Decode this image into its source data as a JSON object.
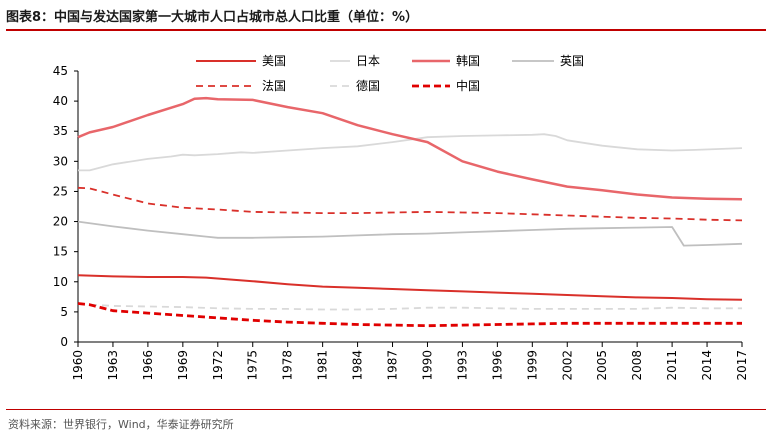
{
  "title": "图表8：中国与发达国家第一大城市人口占城市总人口比重（单位：%）",
  "source": "资料来源：世界银行，Wind，华泰证券研究所",
  "chart_data": {
    "type": "line",
    "ylim": [
      0,
      45
    ],
    "yticks": [
      0,
      5,
      10,
      15,
      20,
      25,
      30,
      35,
      40,
      45
    ],
    "xlim": [
      1960,
      2017
    ],
    "xticks": [
      1960,
      1963,
      1966,
      1969,
      1972,
      1975,
      1978,
      1981,
      1984,
      1987,
      1990,
      1993,
      1996,
      1999,
      2002,
      2005,
      2008,
      2011,
      2014,
      2017
    ],
    "legend_position": "top",
    "series": [
      {
        "name": "美国",
        "color": "#d9302a",
        "dash": "solid",
        "width": 2,
        "points": [
          [
            1960,
            11.1
          ],
          [
            1963,
            10.9
          ],
          [
            1966,
            10.8
          ],
          [
            1969,
            10.8
          ],
          [
            1971,
            10.7
          ],
          [
            1975,
            10.1
          ],
          [
            1978,
            9.6
          ],
          [
            1981,
            9.2
          ],
          [
            1984,
            9.0
          ],
          [
            1987,
            8.8
          ],
          [
            1990,
            8.6
          ],
          [
            1993,
            8.4
          ],
          [
            1996,
            8.2
          ],
          [
            1999,
            8.0
          ],
          [
            2002,
            7.8
          ],
          [
            2005,
            7.6
          ],
          [
            2008,
            7.4
          ],
          [
            2011,
            7.3
          ],
          [
            2014,
            7.1
          ],
          [
            2017,
            7.0
          ]
        ]
      },
      {
        "name": "日本",
        "color": "#d9d9d9",
        "dash": "solid",
        "width": 1.8,
        "points": [
          [
            1960,
            28.5
          ],
          [
            1961,
            28.5
          ],
          [
            1963,
            29.5
          ],
          [
            1966,
            30.4
          ],
          [
            1968,
            30.8
          ],
          [
            1969,
            31.1
          ],
          [
            1970,
            31.0
          ],
          [
            1972,
            31.2
          ],
          [
            1974,
            31.5
          ],
          [
            1975,
            31.4
          ],
          [
            1978,
            31.8
          ],
          [
            1981,
            32.2
          ],
          [
            1984,
            32.5
          ],
          [
            1987,
            33.2
          ],
          [
            1990,
            34.0
          ],
          [
            1993,
            34.2
          ],
          [
            1996,
            34.3
          ],
          [
            1999,
            34.4
          ],
          [
            2000,
            34.5
          ],
          [
            2001,
            34.2
          ],
          [
            2002,
            33.5
          ],
          [
            2005,
            32.6
          ],
          [
            2008,
            32.0
          ],
          [
            2011,
            31.8
          ],
          [
            2013,
            31.9
          ],
          [
            2017,
            32.2
          ]
        ]
      },
      {
        "name": "韩国",
        "color": "#e8666a",
        "dash": "solid",
        "width": 2.5,
        "points": [
          [
            1960,
            34.0
          ],
          [
            1961,
            34.8
          ],
          [
            1963,
            35.7
          ],
          [
            1966,
            37.7
          ],
          [
            1969,
            39.5
          ],
          [
            1970,
            40.4
          ],
          [
            1971,
            40.5
          ],
          [
            1972,
            40.3
          ],
          [
            1975,
            40.2
          ],
          [
            1978,
            39.0
          ],
          [
            1981,
            38.0
          ],
          [
            1984,
            36.0
          ],
          [
            1987,
            34.5
          ],
          [
            1990,
            33.2
          ],
          [
            1993,
            30.0
          ],
          [
            1996,
            28.3
          ],
          [
            1999,
            27.0
          ],
          [
            2002,
            25.8
          ],
          [
            2005,
            25.2
          ],
          [
            2008,
            24.5
          ],
          [
            2011,
            24.0
          ],
          [
            2014,
            23.8
          ],
          [
            2017,
            23.7
          ]
        ]
      },
      {
        "name": "英国",
        "color": "#bfbfbf",
        "dash": "solid",
        "width": 1.8,
        "points": [
          [
            1960,
            20.0
          ],
          [
            1963,
            19.2
          ],
          [
            1966,
            18.5
          ],
          [
            1969,
            17.9
          ],
          [
            1971,
            17.5
          ],
          [
            1972,
            17.3
          ],
          [
            1975,
            17.3
          ],
          [
            1978,
            17.4
          ],
          [
            1981,
            17.5
          ],
          [
            1984,
            17.7
          ],
          [
            1987,
            17.9
          ],
          [
            1990,
            18.0
          ],
          [
            1993,
            18.2
          ],
          [
            1996,
            18.4
          ],
          [
            1999,
            18.6
          ],
          [
            2002,
            18.8
          ],
          [
            2005,
            18.9
          ],
          [
            2008,
            19.0
          ],
          [
            2011,
            19.1
          ],
          [
            2012,
            16.0
          ],
          [
            2014,
            16.1
          ],
          [
            2017,
            16.3
          ]
        ]
      },
      {
        "name": "法国",
        "color": "#d9302a",
        "dash": "7,5",
        "width": 1.8,
        "points": [
          [
            1960,
            25.6
          ],
          [
            1961,
            25.5
          ],
          [
            1963,
            24.5
          ],
          [
            1966,
            23.0
          ],
          [
            1969,
            22.3
          ],
          [
            1972,
            22.0
          ],
          [
            1975,
            21.6
          ],
          [
            1978,
            21.5
          ],
          [
            1981,
            21.4
          ],
          [
            1984,
            21.4
          ],
          [
            1987,
            21.5
          ],
          [
            1990,
            21.6
          ],
          [
            1993,
            21.5
          ],
          [
            1996,
            21.4
          ],
          [
            1999,
            21.2
          ],
          [
            2002,
            21.0
          ],
          [
            2005,
            20.8
          ],
          [
            2008,
            20.6
          ],
          [
            2011,
            20.5
          ],
          [
            2014,
            20.3
          ],
          [
            2017,
            20.2
          ]
        ]
      },
      {
        "name": "德国",
        "color": "#d9d9d9",
        "dash": "7,5",
        "width": 1.8,
        "points": [
          [
            1960,
            6.3
          ],
          [
            1963,
            6.0
          ],
          [
            1966,
            5.9
          ],
          [
            1969,
            5.8
          ],
          [
            1972,
            5.6
          ],
          [
            1975,
            5.5
          ],
          [
            1978,
            5.5
          ],
          [
            1981,
            5.4
          ],
          [
            1984,
            5.4
          ],
          [
            1987,
            5.5
          ],
          [
            1990,
            5.7
          ],
          [
            1993,
            5.7
          ],
          [
            1996,
            5.6
          ],
          [
            1999,
            5.5
          ],
          [
            2002,
            5.5
          ],
          [
            2005,
            5.5
          ],
          [
            2008,
            5.5
          ],
          [
            2011,
            5.7
          ],
          [
            2014,
            5.6
          ],
          [
            2017,
            5.6
          ]
        ]
      },
      {
        "name": "中国",
        "color": "#e00000",
        "dash": "7,4",
        "width": 2.8,
        "points": [
          [
            1960,
            6.4
          ],
          [
            1961,
            6.2
          ],
          [
            1963,
            5.2
          ],
          [
            1966,
            4.8
          ],
          [
            1969,
            4.4
          ],
          [
            1972,
            4.0
          ],
          [
            1975,
            3.6
          ],
          [
            1978,
            3.3
          ],
          [
            1981,
            3.1
          ],
          [
            1984,
            2.9
          ],
          [
            1987,
            2.8
          ],
          [
            1990,
            2.7
          ],
          [
            1993,
            2.8
          ],
          [
            1996,
            2.9
          ],
          [
            1999,
            3.0
          ],
          [
            2002,
            3.1
          ],
          [
            2005,
            3.1
          ],
          [
            2008,
            3.1
          ],
          [
            2011,
            3.1
          ],
          [
            2014,
            3.1
          ],
          [
            2017,
            3.1
          ]
        ]
      }
    ]
  }
}
